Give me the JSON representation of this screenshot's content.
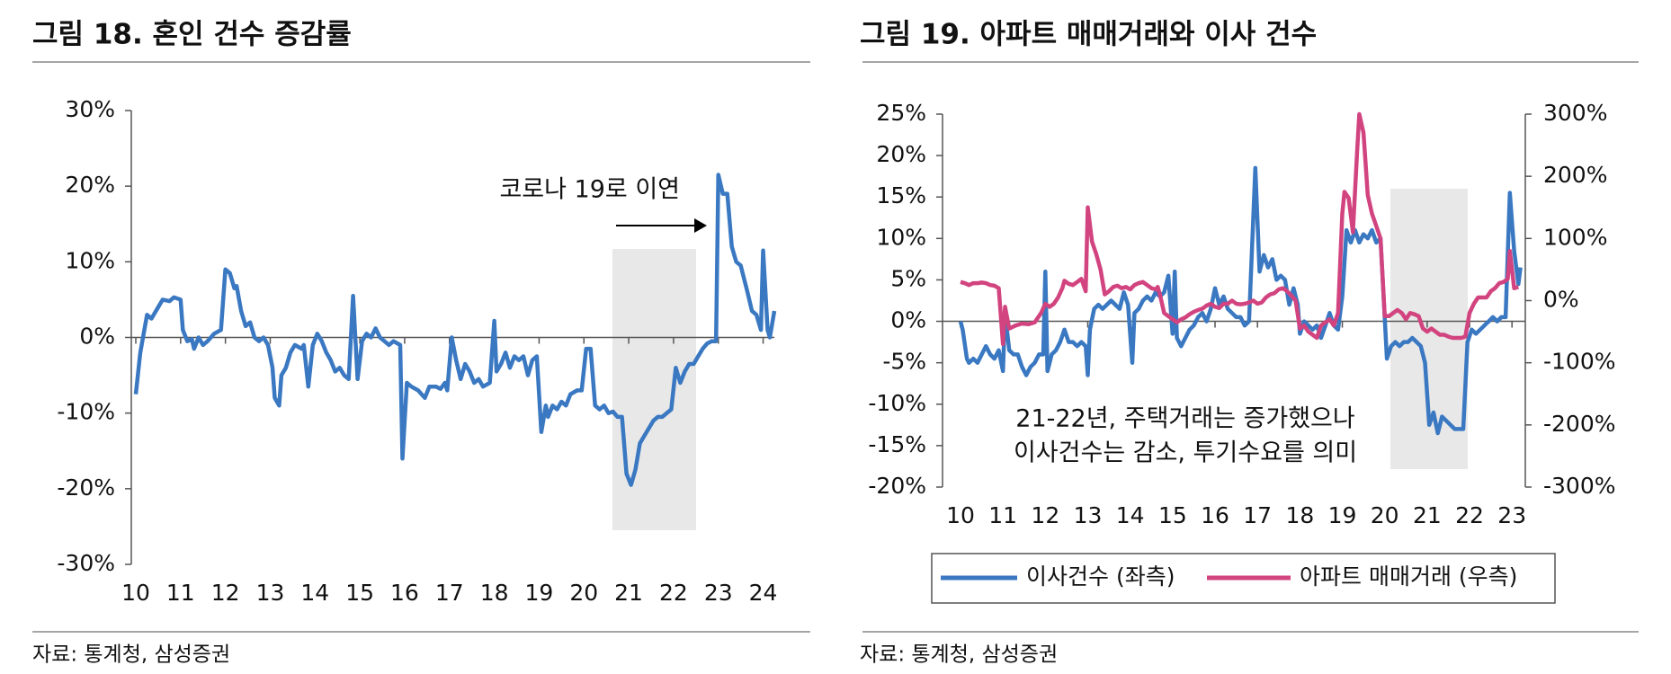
{
  "chart_data": [
    {
      "type": "line",
      "title": "그림 18. 혼인 건수 증감률",
      "source": "자료: 통계청, 삼성증권",
      "annotation": "코로나 19로 이연",
      "color": "#3a78c2",
      "xlim": [
        10,
        24.25
      ],
      "xticks": [
        10,
        11,
        12,
        13,
        14,
        15,
        16,
        17,
        18,
        19,
        20,
        21,
        22,
        23,
        24
      ],
      "ylim": [
        -30,
        30
      ],
      "yticks": [
        {
          "value": -30,
          "label": "-30%"
        },
        {
          "value": -20,
          "label": "-20%"
        },
        {
          "value": -10,
          "label": "-10%"
        },
        {
          "value": 0,
          "label": "0%"
        },
        {
          "value": 10,
          "label": "10%"
        },
        {
          "value": 20,
          "label": "20%"
        },
        {
          "value": 30,
          "label": "30%"
        }
      ],
      "x": [
        10.0,
        10.1,
        10.25,
        10.35,
        10.5,
        10.6,
        10.75,
        10.85,
        11.0,
        11.05,
        11.15,
        11.25,
        11.3,
        11.4,
        11.5,
        11.6,
        11.75,
        11.9,
        12.0,
        12.1,
        12.2,
        12.25,
        12.35,
        12.45,
        12.55,
        12.65,
        12.75,
        12.85,
        12.95,
        13.05,
        13.1,
        13.2,
        13.25,
        13.35,
        13.45,
        13.55,
        13.7,
        13.75,
        13.85,
        13.95,
        14.05,
        14.15,
        14.25,
        14.35,
        14.45,
        14.55,
        14.65,
        14.75,
        14.85,
        14.95,
        15.05,
        15.15,
        15.25,
        15.35,
        15.45,
        15.55,
        15.65,
        15.75,
        15.9,
        15.95,
        16.05,
        16.15,
        16.3,
        16.45,
        16.55,
        16.7,
        16.8,
        16.9,
        16.95,
        17.05,
        17.15,
        17.25,
        17.35,
        17.45,
        17.55,
        17.65,
        17.75,
        17.9,
        18.0,
        18.05,
        18.15,
        18.25,
        18.35,
        18.45,
        18.55,
        18.65,
        18.75,
        18.85,
        18.95,
        19.05,
        19.15,
        19.2,
        19.3,
        19.4,
        19.5,
        19.6,
        19.7,
        19.85,
        19.95,
        20.05,
        20.15,
        20.25,
        20.35,
        20.45,
        20.55,
        20.65,
        20.75,
        20.85,
        20.95,
        21.05,
        21.15,
        21.25,
        21.35,
        21.45,
        21.55,
        21.65,
        21.75,
        21.85,
        21.95,
        22.05,
        22.15,
        22.25,
        22.35,
        22.45,
        22.55,
        22.65,
        22.75,
        22.85,
        22.95,
        23.0,
        23.1,
        23.2,
        23.3,
        23.4,
        23.5,
        23.65,
        23.75,
        23.85,
        23.95,
        24.0,
        24.1,
        24.15,
        24.25
      ],
      "values": [
        -7.5,
        -2,
        3,
        2.5,
        4,
        5,
        4.8,
        5.3,
        5,
        1,
        -0.5,
        -0.2,
        -1.5,
        0,
        -1,
        -0.5,
        0.5,
        1,
        9,
        8.5,
        6.5,
        6.8,
        3.5,
        1.5,
        2,
        0,
        -0.5,
        0,
        -1,
        -4,
        -8,
        -9,
        -5,
        -4,
        -2,
        -1,
        -1.5,
        -1,
        -6.5,
        -1,
        0.5,
        -0.5,
        -2,
        -3,
        -4.5,
        -4,
        -5,
        -5.5,
        5.5,
        -5.5,
        -0.5,
        0.5,
        0,
        1.2,
        0,
        -0.5,
        -1,
        -0.5,
        -1,
        -16,
        -6,
        -6.5,
        -7,
        -8,
        -6.5,
        -6.5,
        -6.8,
        -6,
        -7,
        0,
        -3,
        -5.5,
        -3.5,
        -4.5,
        -6,
        -5.5,
        -6.5,
        -6,
        2.2,
        -4.5,
        -3.5,
        -2,
        -4,
        -2.5,
        -3,
        -2.5,
        -5,
        -3,
        -2.5,
        -12.5,
        -9,
        -10.5,
        -9,
        -9.5,
        -8.5,
        -9,
        -7.5,
        -7,
        -7,
        -1.5,
        -1.5,
        -9,
        -9.5,
        -9,
        -10,
        -9.8,
        -10.5,
        -10.5,
        -18,
        -19.5,
        -17.5,
        -14,
        -13,
        -12,
        -11,
        -10.5,
        -10.5,
        -10,
        -9.5,
        -4,
        -6,
        -4.5,
        -3.5,
        -3.5,
        -2.5,
        -1.5,
        -0.8,
        -0.5,
        -0.5,
        21.5,
        19,
        19,
        12,
        10,
        9.5,
        6,
        3.5,
        3,
        1,
        11.5,
        1,
        0,
        3.5
      ]
    },
    {
      "type": "line",
      "title": "그림 19. 아파트 매매거래와 이사 건수",
      "source": "자료: 통계청, 삼성증권",
      "annotation": [
        "21-22년, 주택거래는 증가했으나",
        "이사건수는 감소, 투기수요를 의미"
      ],
      "xlim": [
        10,
        23.25
      ],
      "xticks": [
        10,
        11,
        12,
        13,
        14,
        15,
        16,
        17,
        18,
        19,
        20,
        21,
        22,
        23
      ],
      "ylim": [
        -20,
        25
      ],
      "yticks": [
        {
          "value": -20,
          "label": "-20%"
        },
        {
          "value": -15,
          "label": "-15%"
        },
        {
          "value": -10,
          "label": "-10%"
        },
        {
          "value": -5,
          "label": "-5%"
        },
        {
          "value": 0,
          "label": "0%"
        },
        {
          "value": 5,
          "label": "5%"
        },
        {
          "value": 10,
          "label": "10%"
        },
        {
          "value": 15,
          "label": "15%"
        },
        {
          "value": 20,
          "label": "20%"
        },
        {
          "value": 25,
          "label": "25%"
        }
      ],
      "y2lim": [
        -300,
        300
      ],
      "y2ticks": [
        {
          "value": -300,
          "label": "-300%"
        },
        {
          "value": -200,
          "label": "-200%"
        },
        {
          "value": -100,
          "label": "-100%"
        },
        {
          "value": 0,
          "label": "0%"
        },
        {
          "value": 100,
          "label": "100%"
        },
        {
          "value": 200,
          "label": "200%"
        },
        {
          "value": 300,
          "label": "300%"
        }
      ],
      "legend": "bottom",
      "series": [
        {
          "name": "이사건수 (좌측)",
          "color": "#3a78c2",
          "x": [
            10.0,
            10.05,
            10.15,
            10.2,
            10.3,
            10.4,
            10.5,
            10.6,
            10.7,
            10.8,
            10.9,
            11.0,
            11.05,
            11.15,
            11.25,
            11.35,
            11.45,
            11.55,
            11.65,
            11.75,
            11.85,
            11.95,
            12.0,
            12.05,
            12.15,
            12.25,
            12.35,
            12.45,
            12.55,
            12.65,
            12.75,
            12.85,
            12.95,
            13.0,
            13.05,
            13.15,
            13.25,
            13.35,
            13.45,
            13.55,
            13.65,
            13.75,
            13.85,
            13.95,
            14.05,
            14.1,
            14.2,
            14.3,
            14.4,
            14.5,
            14.6,
            14.7,
            14.8,
            14.9,
            15.0,
            15.05,
            15.1,
            15.2,
            15.3,
            15.4,
            15.5,
            15.6,
            15.7,
            15.8,
            15.9,
            16.0,
            16.1,
            16.2,
            16.3,
            16.4,
            16.5,
            16.6,
            16.7,
            16.8,
            16.95,
            17.05,
            17.15,
            17.25,
            17.35,
            17.45,
            17.55,
            17.65,
            17.75,
            17.85,
            17.95,
            18.0,
            18.1,
            18.2,
            18.3,
            18.4,
            18.5,
            18.6,
            18.7,
            18.8,
            18.9,
            19.0,
            19.1,
            19.2,
            19.3,
            19.4,
            19.5,
            19.6,
            19.7,
            19.8,
            19.9,
            20.05,
            20.15,
            20.25,
            20.35,
            20.45,
            20.55,
            20.65,
            20.75,
            20.85,
            20.95,
            21.05,
            21.15,
            21.25,
            21.35,
            21.45,
            21.55,
            21.65,
            21.75,
            21.85,
            21.95,
            22.05,
            22.15,
            22.25,
            22.35,
            22.45,
            22.55,
            22.65,
            22.75,
            22.85,
            22.95,
            23.05,
            23.15,
            23.2
          ],
          "values": [
            0,
            -1,
            -4.5,
            -5,
            -4.5,
            -5,
            -4,
            -3,
            -4,
            -4.5,
            -3.5,
            -6,
            1,
            -3.5,
            -4,
            -4,
            -5.5,
            -6.5,
            -5.5,
            -5,
            -4,
            -4,
            6,
            -6,
            -4,
            -3.5,
            -2.5,
            -1,
            -2.5,
            -2.5,
            -3,
            -2.5,
            -3,
            -6.5,
            -1,
            1.5,
            2,
            1.5,
            2,
            2.5,
            2,
            1.5,
            3.5,
            2,
            -5,
            1,
            1.5,
            2.5,
            3,
            2.5,
            3.5,
            3,
            3.5,
            5.5,
            -1.5,
            6,
            -2,
            -3,
            -2,
            -1,
            -0.5,
            0.5,
            1,
            0,
            1.5,
            4,
            2,
            3,
            1.5,
            1,
            0.5,
            0.5,
            -0.5,
            0,
            18.5,
            6,
            8,
            6.5,
            7.5,
            5,
            5.5,
            5,
            2,
            4,
            2,
            -1.5,
            0,
            -0.5,
            -1,
            -0.5,
            -2,
            -0.5,
            1,
            -0.5,
            -1,
            3,
            11,
            9.5,
            11,
            9.5,
            10.5,
            10,
            11,
            9.5,
            10,
            -4.5,
            -3,
            -2.5,
            -3,
            -2.5,
            -2.5,
            -2,
            -2.5,
            -3,
            -5,
            -12.5,
            -11,
            -13.5,
            -11.5,
            -12,
            -12.5,
            -13,
            -13,
            -13,
            -2.5,
            -1,
            -1.5,
            -1,
            -0.5,
            0,
            0.5,
            0,
            0.5,
            0.5,
            15.5,
            8.5,
            4.5,
            6.5
          ]
        },
        {
          "name": "아파트 매매거래 (우측)",
          "color": "#d2447f",
          "axis": "y2",
          "x": [
            10.0,
            10.1,
            10.2,
            10.3,
            10.4,
            10.5,
            10.6,
            10.7,
            10.8,
            10.9,
            11.0,
            11.05,
            11.15,
            11.3,
            11.45,
            11.6,
            11.75,
            11.9,
            12.0,
            12.1,
            12.2,
            12.3,
            12.4,
            12.45,
            12.55,
            12.65,
            12.75,
            12.85,
            12.95,
            13.0,
            13.1,
            13.2,
            13.3,
            13.4,
            13.5,
            13.6,
            13.7,
            13.8,
            13.9,
            14.0,
            14.1,
            14.2,
            14.3,
            14.4,
            14.5,
            14.6,
            14.65,
            14.7,
            14.8,
            14.9,
            15.0,
            15.1,
            15.2,
            15.3,
            15.4,
            15.5,
            15.6,
            15.7,
            15.8,
            15.9,
            16.0,
            16.1,
            16.2,
            16.3,
            16.4,
            16.5,
            16.6,
            16.7,
            16.8,
            16.9,
            17.0,
            17.1,
            17.2,
            17.3,
            17.4,
            17.5,
            17.6,
            17.7,
            17.8,
            17.9,
            18.0,
            18.1,
            18.2,
            18.3,
            18.4,
            18.5,
            18.6,
            18.7,
            18.8,
            18.9,
            19.0,
            19.05,
            19.15,
            19.25,
            19.35,
            19.4,
            19.5,
            19.6,
            19.7,
            19.8,
            19.9,
            20.0,
            20.1,
            20.2,
            20.3,
            20.4,
            20.5,
            20.6,
            20.7,
            20.8,
            20.9,
            21.0,
            21.1,
            21.2,
            21.3,
            21.4,
            21.5,
            21.6,
            21.7,
            21.8,
            21.9,
            22.0,
            22.1,
            22.2,
            22.3,
            22.4,
            22.5,
            22.6,
            22.7,
            22.8,
            22.9,
            22.95,
            23.05,
            23.15
          ],
          "values": [
            30,
            28,
            25,
            28,
            28,
            29,
            28,
            25,
            24,
            20,
            -70,
            -10,
            -45,
            -40,
            -37,
            -38,
            -35,
            -20,
            -5,
            -10,
            -5,
            5,
            20,
            32,
            27,
            25,
            30,
            35,
            15,
            150,
            95,
            75,
            50,
            10,
            15,
            22,
            24,
            20,
            22,
            18,
            25,
            28,
            30,
            25,
            20,
            18,
            22,
            10,
            -20,
            -25,
            -30,
            -35,
            -30,
            -27,
            -22,
            -18,
            -15,
            -13,
            -8,
            -5,
            -10,
            -12,
            -5,
            -5,
            0,
            -5,
            -6,
            -5,
            -3,
            0,
            -5,
            -3,
            5,
            10,
            12,
            18,
            20,
            15,
            8,
            0,
            -45,
            -40,
            -50,
            -55,
            -60,
            -40,
            -35,
            -30,
            -40,
            -20,
            140,
            175,
            165,
            110,
            240,
            300,
            270,
            170,
            140,
            120,
            100,
            -25,
            -25,
            -20,
            -15,
            -20,
            -30,
            -20,
            -22,
            -25,
            -45,
            -50,
            -45,
            -50,
            -55,
            -55,
            -58,
            -60,
            -60,
            -60,
            -58,
            -20,
            -5,
            5,
            5,
            5,
            15,
            20,
            28,
            30,
            35,
            80,
            20,
            22
          ]
        }
      ]
    }
  ]
}
